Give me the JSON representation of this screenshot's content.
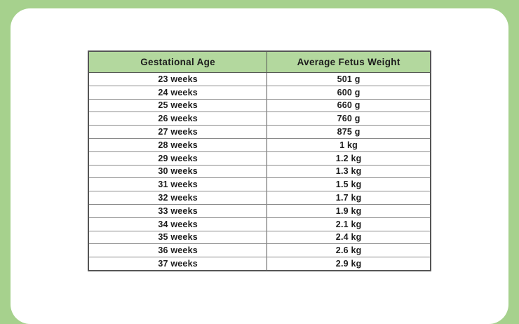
{
  "colors": {
    "frame-green": "#a6d18d",
    "header-green": "#b3d89e",
    "card-white": "#ffffff",
    "text-dark": "#1d1d1d",
    "border-dark": "#555555",
    "border-light": "#8a8a8a"
  },
  "table": {
    "columns": [
      "Gestational Age",
      "Average Fetus Weight"
    ],
    "rows": [
      {
        "age": "23 weeks",
        "weight": "501 g"
      },
      {
        "age": "24 weeks",
        "weight": "600 g"
      },
      {
        "age": "25 weeks",
        "weight": "660 g"
      },
      {
        "age": "26 weeks",
        "weight": "760 g"
      },
      {
        "age": "27 weeks",
        "weight": "875 g"
      },
      {
        "age": "28 weeks",
        "weight": "1 kg"
      },
      {
        "age": "29 weeks",
        "weight": "1.2 kg"
      },
      {
        "age": "30 weeks",
        "weight": "1.3 kg"
      },
      {
        "age": "31 weeks",
        "weight": "1.5 kg"
      },
      {
        "age": "32 weeks",
        "weight": "1.7 kg"
      },
      {
        "age": "33 weeks",
        "weight": "1.9 kg"
      },
      {
        "age": "34 weeks",
        "weight": "2.1 kg"
      },
      {
        "age": "35 weeks",
        "weight": "2.4 kg"
      },
      {
        "age": "36 weeks",
        "weight": "2.6 kg"
      },
      {
        "age": "37 weeks",
        "weight": "2.9 kg"
      }
    ]
  },
  "chart_data": {
    "type": "table",
    "title": "",
    "columns": [
      "Gestational Age",
      "Average Fetus Weight"
    ],
    "rows": [
      [
        "23 weeks",
        "501 g"
      ],
      [
        "24 weeks",
        "600 g"
      ],
      [
        "25 weeks",
        "660 g"
      ],
      [
        "26 weeks",
        "760 g"
      ],
      [
        "27 weeks",
        "875 g"
      ],
      [
        "28 weeks",
        "1 kg"
      ],
      [
        "29 weeks",
        "1.2 kg"
      ],
      [
        "30 weeks",
        "1.3 kg"
      ],
      [
        "31 weeks",
        "1.5 kg"
      ],
      [
        "32 weeks",
        "1.7 kg"
      ],
      [
        "33 weeks",
        "1.9 kg"
      ],
      [
        "34 weeks",
        "2.1 kg"
      ],
      [
        "35 weeks",
        "2.4 kg"
      ],
      [
        "36 weeks",
        "2.6 kg"
      ],
      [
        "37 weeks",
        "2.9 kg"
      ]
    ],
    "x_weeks": [
      23,
      24,
      25,
      26,
      27,
      28,
      29,
      30,
      31,
      32,
      33,
      34,
      35,
      36,
      37
    ],
    "weight_grams": [
      501,
      600,
      660,
      760,
      875,
      1000,
      1200,
      1300,
      1500,
      1700,
      1900,
      2100,
      2400,
      2600,
      2900
    ]
  }
}
